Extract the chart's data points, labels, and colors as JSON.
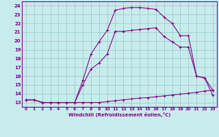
{
  "xlabel": "Windchill (Refroidissement éolien,°C)",
  "bg_color": "#c8ecec",
  "line_color": "#880088",
  "grid_color": "#99cccc",
  "xlim": [
    -0.5,
    23.5
  ],
  "ylim": [
    12.5,
    24.5
  ],
  "xticks": [
    0,
    1,
    2,
    3,
    4,
    5,
    6,
    7,
    8,
    9,
    10,
    11,
    12,
    13,
    14,
    15,
    16,
    17,
    18,
    19,
    20,
    21,
    22,
    23
  ],
  "yticks": [
    13,
    14,
    15,
    16,
    17,
    18,
    19,
    20,
    21,
    22,
    23,
    24
  ],
  "line1_x": [
    0,
    1,
    2,
    3,
    4,
    5,
    6,
    7,
    8,
    9,
    10,
    11,
    12,
    13,
    14,
    15,
    16,
    17,
    18,
    19,
    20,
    21,
    22,
    23
  ],
  "line1_y": [
    13.3,
    13.3,
    13.0,
    13.0,
    13.0,
    13.0,
    13.0,
    13.0,
    13.0,
    13.0,
    13.1,
    13.2,
    13.3,
    13.4,
    13.5,
    13.55,
    13.65,
    13.75,
    13.85,
    13.95,
    14.05,
    14.15,
    14.3,
    14.4
  ],
  "line2_x": [
    0,
    1,
    2,
    3,
    4,
    5,
    6,
    7,
    8,
    9,
    10,
    11,
    12,
    13,
    14,
    15,
    16,
    17,
    18,
    19,
    20,
    21,
    22,
    23
  ],
  "line2_y": [
    13.3,
    13.3,
    13.0,
    13.0,
    13.0,
    13.0,
    13.0,
    15.5,
    18.5,
    19.9,
    21.2,
    23.5,
    23.7,
    23.8,
    23.8,
    23.7,
    23.6,
    22.7,
    22.0,
    20.6,
    20.6,
    16.0,
    15.8,
    14.4
  ],
  "line3_x": [
    0,
    1,
    2,
    3,
    4,
    5,
    6,
    7,
    8,
    9,
    10,
    11,
    12,
    13,
    14,
    15,
    16,
    17,
    18,
    19,
    20,
    21,
    22,
    23
  ],
  "line3_y": [
    13.3,
    13.3,
    13.0,
    13.0,
    13.0,
    13.0,
    13.0,
    15.0,
    16.8,
    17.5,
    18.5,
    21.1,
    21.1,
    21.2,
    21.3,
    21.4,
    21.5,
    20.5,
    19.9,
    19.3,
    19.3,
    16.0,
    15.8,
    13.8
  ]
}
